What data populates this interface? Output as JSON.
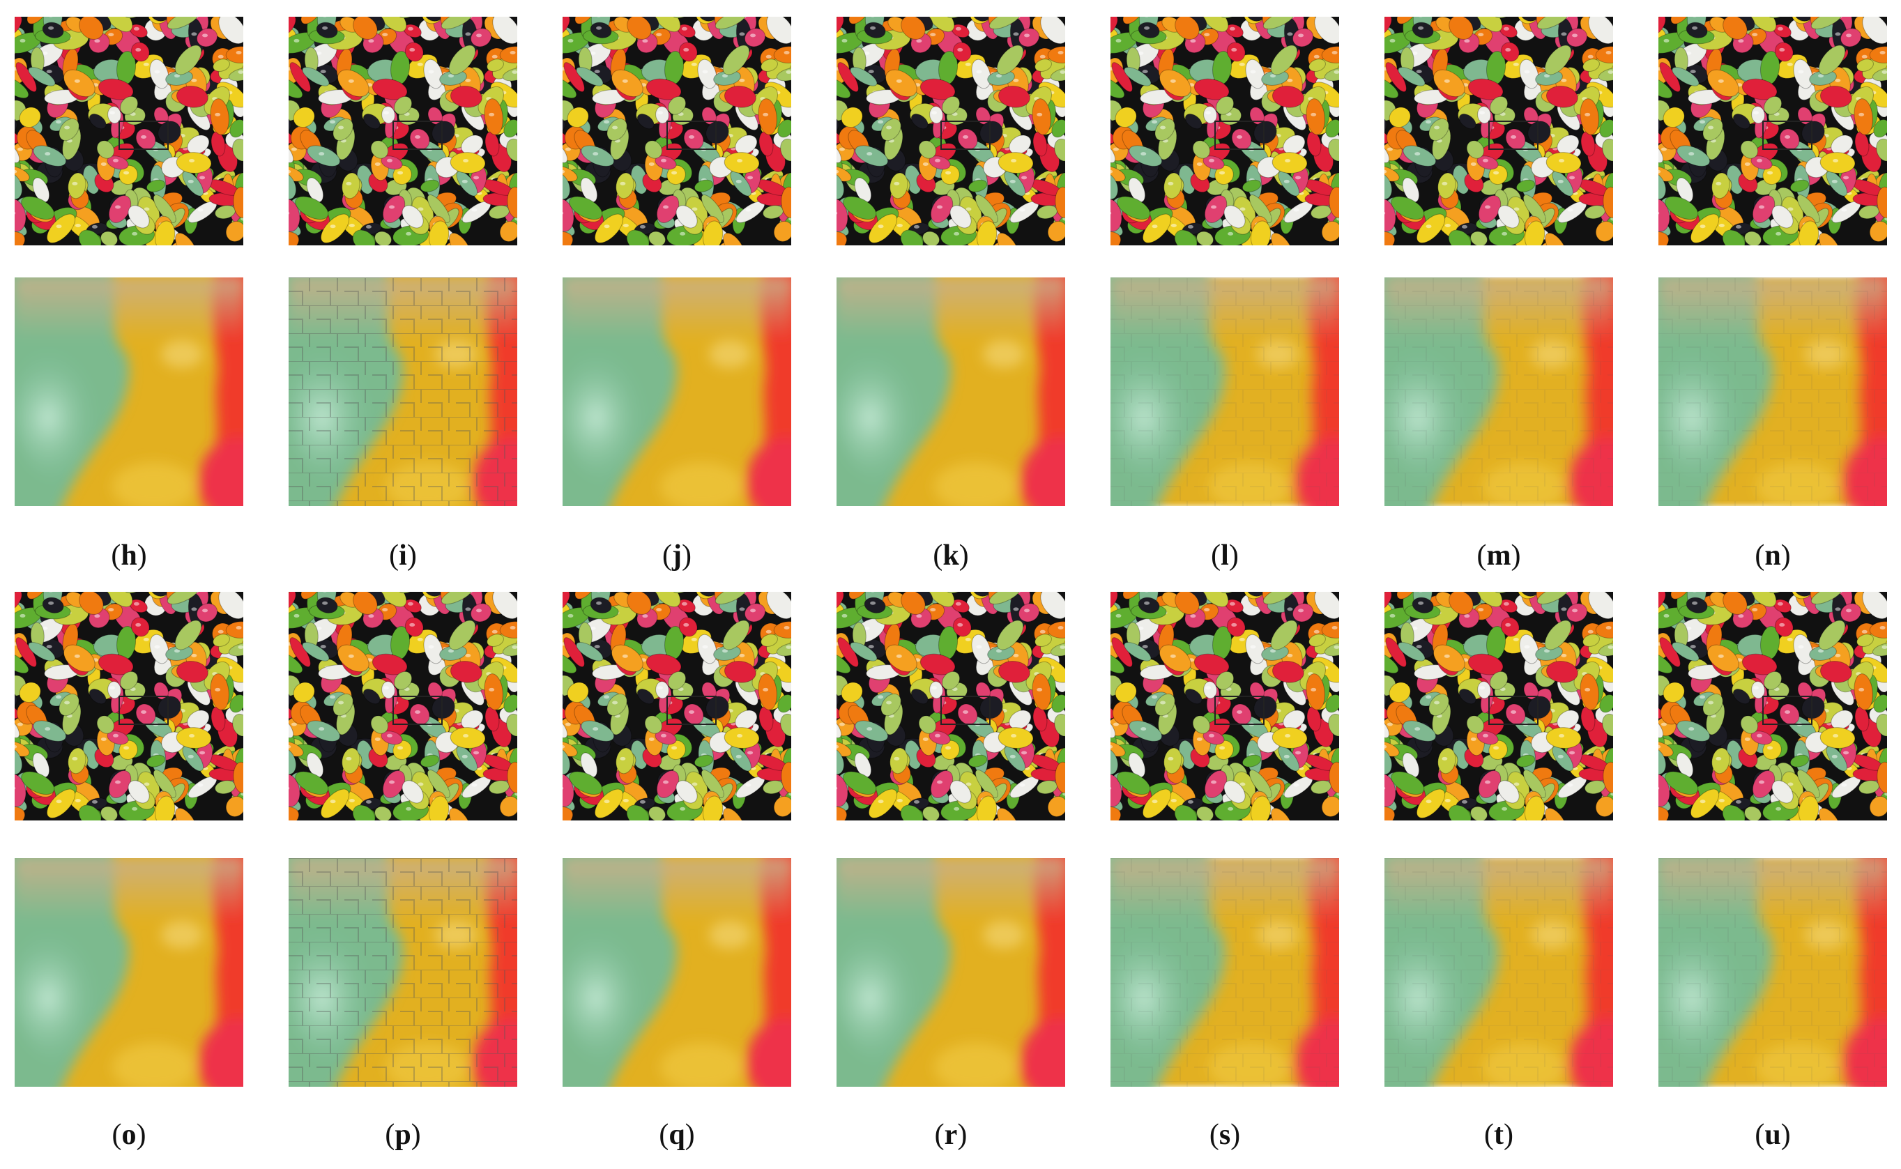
{
  "figure": {
    "labels": [
      "(h)",
      "(i)",
      "(j)",
      "(k)",
      "(l)",
      "(m)",
      "(n)",
      "(o)",
      "(p)",
      "(q)",
      "(r)",
      "(s)",
      "(t)",
      "(u)"
    ]
  }
}
